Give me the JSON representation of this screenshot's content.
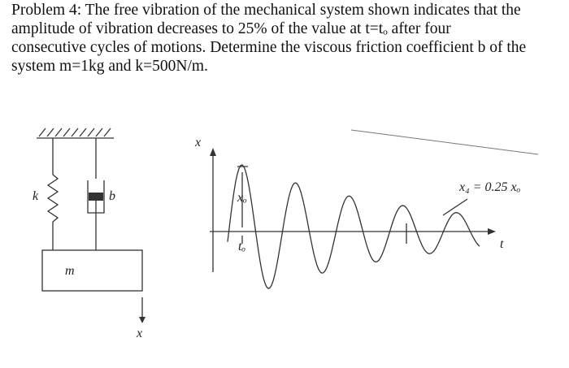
{
  "problem": {
    "lines": [
      "Problem 4: The free vibration of the mechanical system shown indicates that the",
      "amplitude of vibration decreases to 25% of the value at t=tₒ after four",
      "consecutive cycles of motions. Determine the viscous friction coefficient b of the",
      "system m=1kg and k=500N/m."
    ]
  },
  "system": {
    "spring_label": "k",
    "damper_label": "b",
    "mass_label": "m",
    "displacement_label": "x"
  },
  "response": {
    "y_axis_label": "x",
    "x_axis_label": "t",
    "initial_amplitude_label": "xₒ",
    "initial_time_label": "tₒ",
    "final_amplitude_label": "x₄ = 0.25 xₒ"
  }
}
